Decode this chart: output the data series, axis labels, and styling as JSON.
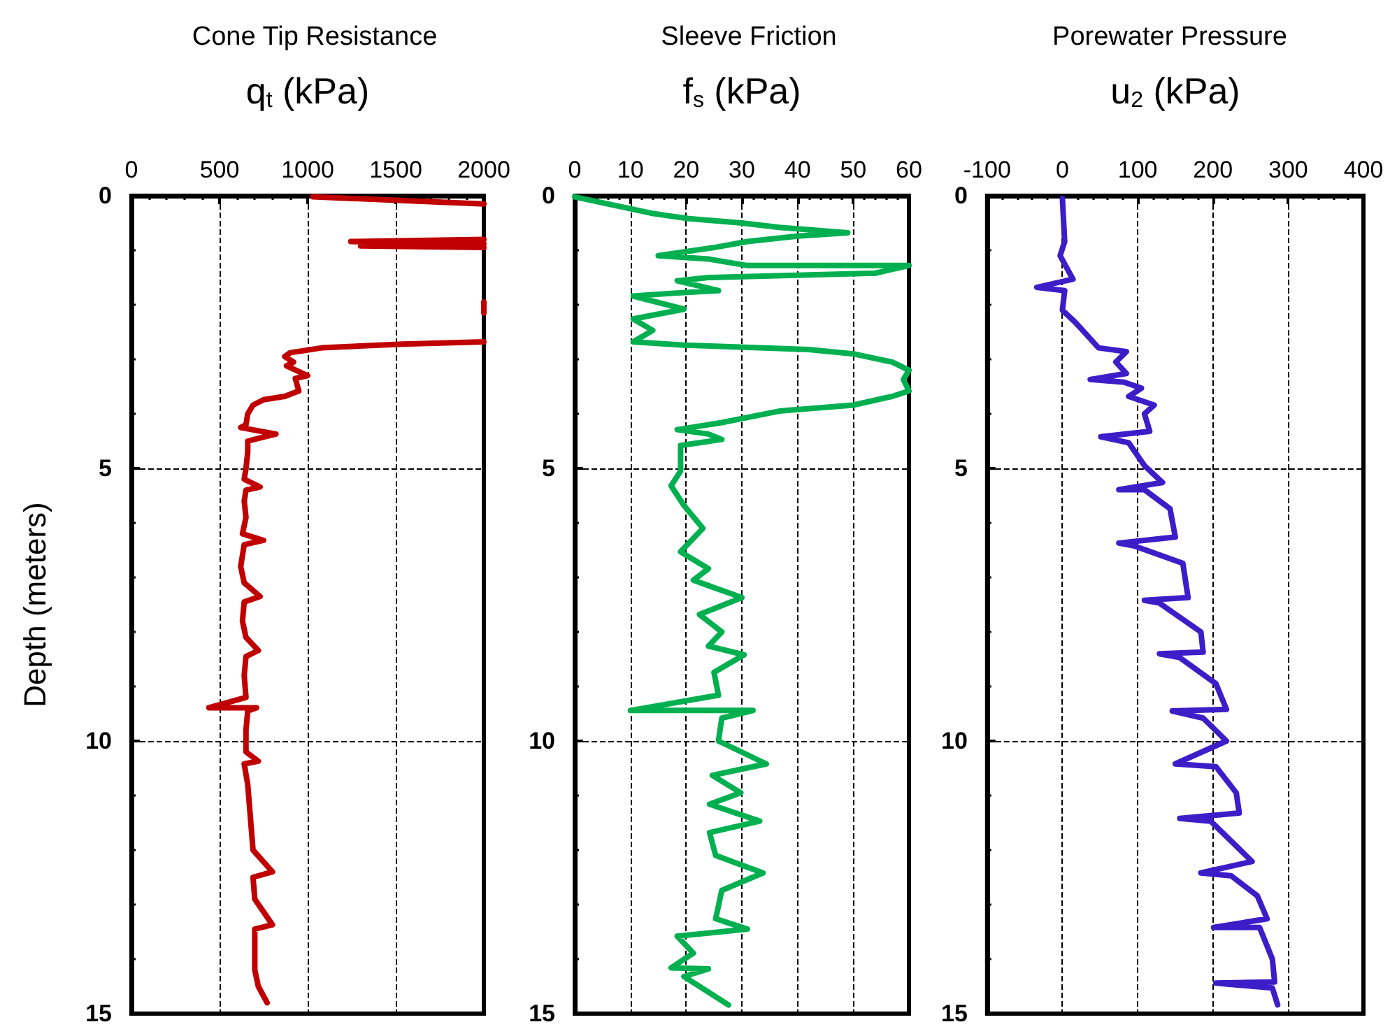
{
  "chart_data": [
    {
      "type": "line",
      "title": "Cone Tip Resistance",
      "xlabel": "q$_{t}$ (kPa)",
      "ylabel": "Depth (meters)",
      "xlim": [
        0,
        2000
      ],
      "xticks": [
        0,
        500,
        1000,
        1500,
        2000
      ],
      "ylim": [
        15,
        0
      ],
      "yticks": [
        0,
        5,
        10,
        15
      ],
      "grid": true,
      "marker": "none",
      "series": [
        {
          "color": "#c00000",
          "x": [
            1030,
            2000,
            null,
            2000,
            1245,
            2000,
            1300,
            2000,
            null,
            2000,
            2000,
            null,
            2000,
            1540,
            1080,
            900,
            870,
            920,
            880,
            1000,
            930,
            950,
            870,
            750,
            690,
            660,
            650,
            620,
            700,
            820,
            720,
            660,
            660,
            650,
            640,
            730,
            650,
            640,
            650,
            630,
            750,
            640,
            620,
            640,
            730,
            640,
            630,
            650,
            720,
            650,
            640,
            650,
            440,
            710,
            660,
            650,
            650,
            720,
            640,
            660,
            670,
            680,
            690,
            800,
            690,
            700,
            800,
            700,
            700,
            700,
            720,
            770
          ],
          "values": [
            0.02,
            0.15,
            null,
            0.8,
            0.84,
            0.88,
            0.92,
            0.95,
            null,
            1.95,
            2.15,
            null,
            2.68,
            2.72,
            2.79,
            2.88,
            2.95,
            3.05,
            3.12,
            3.3,
            3.35,
            3.58,
            3.68,
            3.74,
            3.84,
            4.0,
            4.2,
            4.25,
            4.3,
            4.37,
            4.45,
            4.5,
            4.7,
            5.0,
            5.2,
            5.34,
            5.4,
            5.6,
            5.9,
            6.2,
            6.32,
            6.4,
            6.8,
            7.1,
            7.35,
            7.45,
            7.8,
            8.1,
            8.34,
            8.45,
            8.8,
            9.2,
            9.39,
            9.39,
            9.45,
            9.8,
            10.2,
            10.37,
            10.42,
            10.8,
            11.2,
            11.6,
            12.0,
            12.4,
            12.5,
            12.9,
            13.37,
            13.45,
            13.8,
            14.2,
            14.5,
            14.8
          ]
        }
      ]
    },
    {
      "type": "line",
      "title": "Sleeve Friction",
      "xlabel": "f$_{s}$ (kPa)",
      "xlim": [
        0,
        60
      ],
      "xticks": [
        0,
        10,
        20,
        30,
        40,
        50,
        60
      ],
      "ylim": [
        15,
        0
      ],
      "yticks": [
        0,
        5,
        10,
        15
      ],
      "grid": true,
      "marker": "none",
      "series": [
        {
          "color": "#00b050",
          "x": [
            0,
            13.7,
            17,
            20.5,
            30,
            36.7,
            49,
            40,
            31,
            25,
            15,
            24,
            31,
            60,
            54,
            24,
            18.4,
            25.8,
            17.3,
            10.5,
            19.6,
            10.5,
            14,
            10.5,
            19.6,
            42,
            50,
            57,
            60,
            59,
            60,
            57,
            50,
            36.7,
            26.4,
            18.4,
            24,
            26.4,
            19,
            19,
            17.3,
            19.6,
            23,
            19,
            24,
            21.3,
            30,
            22.4,
            26.4,
            24,
            30.4,
            25,
            25.8,
            10,
            32,
            26.4,
            25.8,
            34.4,
            24.7,
            29.8,
            24.2,
            33.2,
            24.2,
            25.3,
            33.8,
            26.4,
            25.3,
            31,
            18.4,
            21.3,
            17.3,
            24,
            19.6,
            27.6
          ],
          "values": [
            0.02,
            0.32,
            0.37,
            0.42,
            0.5,
            0.58,
            0.68,
            0.74,
            0.84,
            0.95,
            1.1,
            1.16,
            1.28,
            1.28,
            1.42,
            1.5,
            1.56,
            1.74,
            1.79,
            1.84,
            2.08,
            2.26,
            2.47,
            2.68,
            2.74,
            2.82,
            2.9,
            3.05,
            3.2,
            3.37,
            3.58,
            3.68,
            3.84,
            3.95,
            4.16,
            4.29,
            4.37,
            4.47,
            4.58,
            5.05,
            5.32,
            5.68,
            6.1,
            6.53,
            6.84,
            7.05,
            7.37,
            7.68,
            8.0,
            8.26,
            8.42,
            8.74,
            9.16,
            9.44,
            9.44,
            9.58,
            10.0,
            10.42,
            10.63,
            10.95,
            11.16,
            11.47,
            11.68,
            12.1,
            12.42,
            12.74,
            13.26,
            13.45,
            13.58,
            13.89,
            14.16,
            14.18,
            14.32,
            14.84
          ]
        }
      ]
    },
    {
      "type": "line",
      "title": "Porewater Pressure",
      "xlabel": "u$_{2}$ (kPa)",
      "xlim": [
        -100,
        400
      ],
      "xticks": [
        -100,
        0,
        100,
        200,
        300,
        400
      ],
      "ylim": [
        15,
        0
      ],
      "yticks": [
        0,
        5,
        10,
        15
      ],
      "grid": true,
      "marker": "none",
      "series": [
        {
          "color": "#3c1ec8",
          "x": [
            0,
            3,
            -3,
            14,
            -34,
            3,
            0,
            17,
            31,
            48,
            85,
            71,
            85,
            37,
            82,
            105,
            88,
            122,
            109,
            116,
            51,
            88,
            109,
            133,
            75,
            109,
            143,
            150,
            75,
            95,
            160,
            167,
            109,
            129,
            184,
            187,
            129,
            156,
            204,
            218,
            146,
            187,
            218,
            150,
            204,
            231,
            235,
            156,
            197,
            252,
            184,
            224,
            259,
            272,
            201,
            262,
            279,
            282,
            204,
            279,
            286
          ],
          "values": [
            0.05,
            0.84,
            1.1,
            1.53,
            1.68,
            1.74,
            2.1,
            2.32,
            2.53,
            2.79,
            2.86,
            3.05,
            3.26,
            3.37,
            3.42,
            3.53,
            3.68,
            3.84,
            4.0,
            4.32,
            4.42,
            4.53,
            4.95,
            5.26,
            5.39,
            5.39,
            5.74,
            6.26,
            6.37,
            6.42,
            6.74,
            7.37,
            7.42,
            7.47,
            8.0,
            8.37,
            8.4,
            8.47,
            8.95,
            9.42,
            9.45,
            9.58,
            10.0,
            10.42,
            10.47,
            10.95,
            11.32,
            11.42,
            11.47,
            12.21,
            12.42,
            12.47,
            12.84,
            13.26,
            13.42,
            13.42,
            14.0,
            14.42,
            14.44,
            14.53,
            14.84
          ]
        }
      ]
    }
  ]
}
